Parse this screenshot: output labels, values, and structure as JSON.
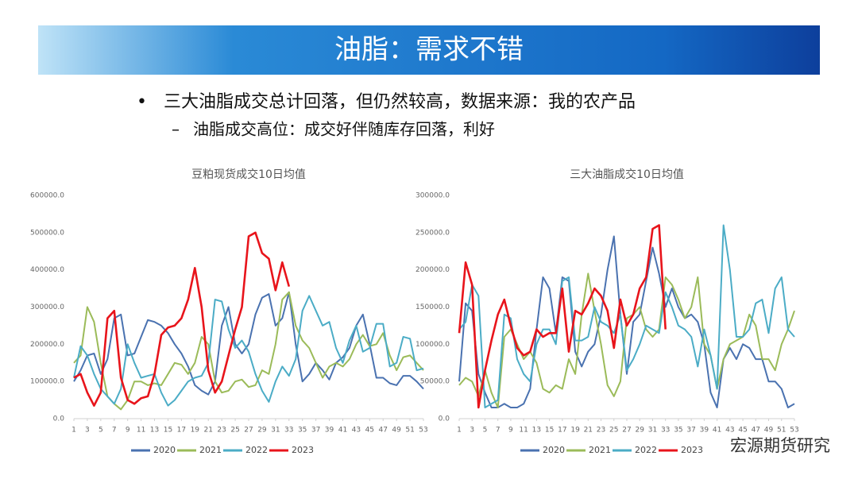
{
  "slide": {
    "title": "油脂：需求不错",
    "bullet": "三大油脂成交总计回落，但仍然较高，数据来源：我的农产品",
    "sub_bullet": "油脂成交高位：成交好伴随库存回落，利好",
    "brand": "宏源期货研究"
  },
  "chart_data": [
    {
      "type": "line",
      "title": "豆粕现货成交10日均值",
      "x": [
        1,
        2,
        3,
        4,
        5,
        6,
        7,
        8,
        9,
        10,
        11,
        12,
        13,
        14,
        15,
        16,
        17,
        18,
        19,
        20,
        21,
        22,
        23,
        24,
        25,
        26,
        27,
        28,
        29,
        30,
        31,
        32,
        33,
        34,
        35,
        36,
        37,
        38,
        39,
        40,
        41,
        42,
        43,
        44,
        45,
        46,
        47,
        48,
        49,
        50,
        51,
        52,
        53
      ],
      "xlim": [
        1,
        53
      ],
      "xticks": [
        1,
        3,
        5,
        7,
        9,
        11,
        13,
        15,
        17,
        19,
        21,
        23,
        25,
        27,
        29,
        31,
        33,
        35,
        37,
        39,
        41,
        43,
        45,
        47,
        49,
        51,
        53
      ],
      "ylim": [
        0,
        600000
      ],
      "yticks": [
        {
          "value": 0,
          "label": "0.0"
        },
        {
          "value": 100000,
          "label": "100000.0"
        },
        {
          "value": 200000,
          "label": "200000.0"
        },
        {
          "value": 300000,
          "label": "300000.0"
        },
        {
          "value": 400000,
          "label": "400000.0"
        },
        {
          "value": 500000,
          "label": "500000.0"
        },
        {
          "value": 600000,
          "label": "600000.0"
        }
      ],
      "grid": false,
      "legend": "bottom",
      "series": [
        {
          "name": "2020",
          "color": "#4a72b0",
          "values": [
            100000,
            130000,
            170000,
            175000,
            120000,
            160000,
            270000,
            280000,
            170000,
            175000,
            220000,
            265000,
            260000,
            250000,
            230000,
            200000,
            175000,
            140000,
            90000,
            75000,
            65000,
            100000,
            250000,
            300000,
            200000,
            175000,
            200000,
            280000,
            325000,
            335000,
            250000,
            270000,
            340000,
            200000,
            100000,
            120000,
            150000,
            130000,
            105000,
            150000,
            165000,
            190000,
            250000,
            280000,
            200000,
            110000,
            110000,
            95000,
            90000,
            115000,
            115000,
            100000,
            80000
          ]
        },
        {
          "name": "2021",
          "color": "#9bbb59",
          "values": [
            150000,
            170000,
            300000,
            260000,
            150000,
            60000,
            40000,
            25000,
            50000,
            100000,
            100000,
            90000,
            95000,
            90000,
            120000,
            150000,
            145000,
            120000,
            150000,
            220000,
            200000,
            100000,
            70000,
            75000,
            100000,
            105000,
            85000,
            90000,
            130000,
            120000,
            200000,
            320000,
            340000,
            250000,
            210000,
            190000,
            150000,
            110000,
            140000,
            150000,
            140000,
            160000,
            200000,
            225000,
            195000,
            200000,
            230000,
            170000,
            130000,
            165000,
            170000,
            150000,
            130000
          ]
        },
        {
          "name": "2022",
          "color": "#4bacc6",
          "values": [
            110000,
            195000,
            170000,
            120000,
            80000,
            60000,
            40000,
            80000,
            200000,
            150000,
            110000,
            115000,
            120000,
            70000,
            35000,
            50000,
            75000,
            100000,
            110000,
            115000,
            150000,
            320000,
            315000,
            240000,
            190000,
            210000,
            180000,
            120000,
            75000,
            45000,
            100000,
            140000,
            115000,
            160000,
            290000,
            330000,
            290000,
            250000,
            260000,
            190000,
            150000,
            210000,
            250000,
            180000,
            190000,
            255000,
            255000,
            140000,
            150000,
            220000,
            215000,
            130000,
            135000
          ]
        },
        {
          "name": "2023",
          "color": "#e8141b",
          "values": [
            110000,
            120000,
            70000,
            35000,
            70000,
            270000,
            290000,
            110000,
            50000,
            40000,
            55000,
            60000,
            120000,
            225000,
            245000,
            250000,
            270000,
            320000,
            405000,
            300000,
            130000,
            70000,
            100000,
            170000,
            240000,
            300000,
            490000,
            500000,
            445000,
            430000,
            345000,
            420000,
            355000,
            null,
            null,
            null,
            null,
            null,
            null,
            null,
            null,
            null,
            null,
            null,
            null,
            null,
            null,
            null,
            null,
            null,
            null,
            null,
            null
          ]
        }
      ]
    },
    {
      "type": "line",
      "title": "三大油脂成交10日均值",
      "x": [
        1,
        2,
        3,
        4,
        5,
        6,
        7,
        8,
        9,
        10,
        11,
        12,
        13,
        14,
        15,
        16,
        17,
        18,
        19,
        20,
        21,
        22,
        23,
        24,
        25,
        26,
        27,
        28,
        29,
        30,
        31,
        32,
        33,
        34,
        35,
        36,
        37,
        38,
        39,
        40,
        41,
        42,
        43,
        44,
        45,
        46,
        47,
        48,
        49,
        50,
        51,
        52,
        53
      ],
      "xlim": [
        1,
        53
      ],
      "xticks": [
        1,
        3,
        5,
        7,
        9,
        11,
        13,
        15,
        17,
        19,
        21,
        23,
        25,
        27,
        29,
        31,
        33,
        35,
        37,
        39,
        41,
        43,
        45,
        47,
        49,
        51,
        53
      ],
      "ylim": [
        0,
        300000
      ],
      "yticks": [
        {
          "value": 0,
          "label": "0.0"
        },
        {
          "value": 50000,
          "label": "50000.0"
        },
        {
          "value": 100000,
          "label": "100000.0"
        },
        {
          "value": 150000,
          "label": "150000.0"
        },
        {
          "value": 200000,
          "label": "200000.0"
        },
        {
          "value": 250000,
          "label": "250000.0"
        },
        {
          "value": 300000,
          "label": "300000.0"
        }
      ],
      "grid": false,
      "legend": "bottom",
      "series": [
        {
          "name": "2020",
          "color": "#4a72b0",
          "values": [
            50000,
            155000,
            145000,
            60000,
            35000,
            15000,
            15000,
            20000,
            15000,
            15000,
            20000,
            40000,
            120000,
            190000,
            175000,
            115000,
            190000,
            185000,
            90000,
            70000,
            90000,
            100000,
            140000,
            200000,
            245000,
            140000,
            60000,
            130000,
            140000,
            185000,
            230000,
            195000,
            150000,
            175000,
            150000,
            135000,
            140000,
            130000,
            100000,
            35000,
            15000,
            80000,
            95000,
            80000,
            100000,
            95000,
            80000,
            80000,
            50000,
            50000,
            40000,
            15000,
            20000
          ]
        },
        {
          "name": "2021",
          "color": "#9bbb59",
          "values": [
            45000,
            55000,
            50000,
            30000,
            65000,
            35000,
            15000,
            110000,
            120000,
            100000,
            80000,
            90000,
            75000,
            40000,
            35000,
            45000,
            40000,
            80000,
            60000,
            140000,
            195000,
            145000,
            100000,
            45000,
            30000,
            50000,
            135000,
            140000,
            150000,
            120000,
            110000,
            120000,
            190000,
            180000,
            160000,
            135000,
            150000,
            190000,
            100000,
            85000,
            40000,
            80000,
            100000,
            105000,
            110000,
            140000,
            125000,
            80000,
            80000,
            65000,
            100000,
            120000,
            145000
          ]
        },
        {
          "name": "2022",
          "color": "#4bacc6",
          "values": [
            120000,
            130000,
            180000,
            165000,
            15000,
            20000,
            25000,
            140000,
            135000,
            80000,
            60000,
            50000,
            100000,
            120000,
            120000,
            100000,
            185000,
            190000,
            105000,
            105000,
            110000,
            150000,
            130000,
            125000,
            115000,
            140000,
            65000,
            80000,
            100000,
            125000,
            120000,
            115000,
            170000,
            150000,
            125000,
            120000,
            110000,
            70000,
            120000,
            85000,
            40000,
            260000,
            200000,
            110000,
            110000,
            120000,
            155000,
            160000,
            115000,
            175000,
            190000,
            120000,
            110000
          ]
        },
        {
          "name": "2023",
          "color": "#e8141b",
          "values": [
            115000,
            210000,
            180000,
            15000,
            65000,
            105000,
            140000,
            160000,
            125000,
            95000,
            85000,
            90000,
            120000,
            110000,
            115000,
            115000,
            175000,
            90000,
            145000,
            140000,
            155000,
            175000,
            165000,
            145000,
            95000,
            160000,
            125000,
            140000,
            175000,
            190000,
            255000,
            260000,
            120000,
            null,
            null,
            null,
            null,
            null,
            null,
            null,
            null,
            null,
            null,
            null,
            null,
            null,
            null,
            null,
            null,
            null,
            null,
            null,
            null
          ]
        }
      ]
    }
  ]
}
